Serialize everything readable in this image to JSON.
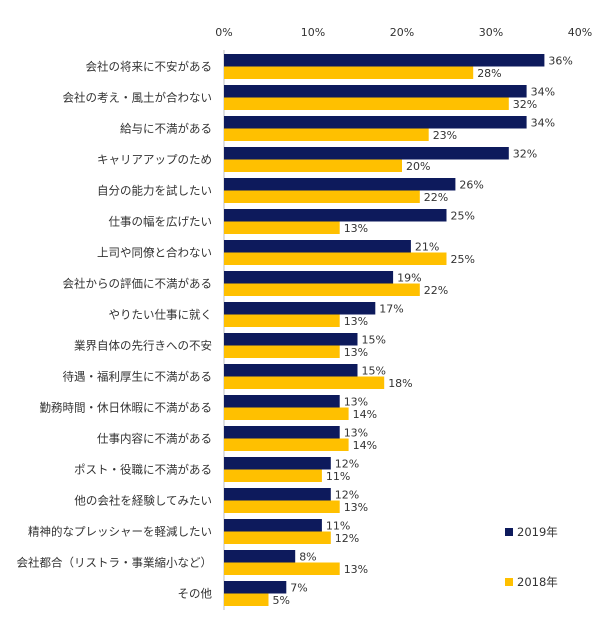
{
  "chart_data": {
    "type": "bar",
    "orientation": "horizontal",
    "title": "",
    "xlabel": "",
    "ylabel": "",
    "xlim": [
      0,
      40
    ],
    "ticks": [
      0,
      10,
      20,
      30,
      40
    ],
    "tick_labels": [
      "0%",
      "10%",
      "20%",
      "30%",
      "40%"
    ],
    "grid": false,
    "legend_position": "bottom-right",
    "categories": [
      "会社の将来に不安がある",
      "会社の考え・風土が合わない",
      "給与に不満がある",
      "キャリアアップのため",
      "自分の能力を試したい",
      "仕事の幅を広げたい",
      "上司や同僚と合わない",
      "会社からの評価に不満がある",
      "やりたい仕事に就く",
      "業界自体の先行きへの不安",
      "待遇・福利厚生に不満がある",
      "勤務時間・休日休暇に不満がある",
      "仕事内容に不満がある",
      "ポスト・役職に不満がある",
      "他の会社を経験してみたい",
      "精神的なプレッシャーを軽減したい",
      "会社都合（リストラ・事業縮小など）",
      "その他"
    ],
    "series": [
      {
        "name": "2019年",
        "color": "#0D1A5C",
        "values": [
          36,
          34,
          34,
          32,
          26,
          25,
          21,
          19,
          17,
          15,
          15,
          13,
          13,
          12,
          12,
          11,
          8,
          7
        ],
        "labels": [
          "36%",
          "34%",
          "34%",
          "32%",
          "26%",
          "25%",
          "21%",
          "19%",
          "17%",
          "15%",
          "15%",
          "13%",
          "13%",
          "12%",
          "12%",
          "11%",
          "8%",
          "7%"
        ]
      },
      {
        "name": "2018年",
        "color": "#FFC000",
        "values": [
          28,
          32,
          23,
          20,
          22,
          13,
          25,
          22,
          13,
          13,
          18,
          14,
          14,
          11,
          13,
          12,
          13,
          5
        ],
        "labels": [
          "28%",
          "32%",
          "23%",
          "20%",
          "22%",
          "13%",
          "25%",
          "22%",
          "13%",
          "13%",
          "18%",
          "14%",
          "14%",
          "11%",
          "13%",
          "12%",
          "13%",
          "5%"
        ]
      }
    ]
  }
}
